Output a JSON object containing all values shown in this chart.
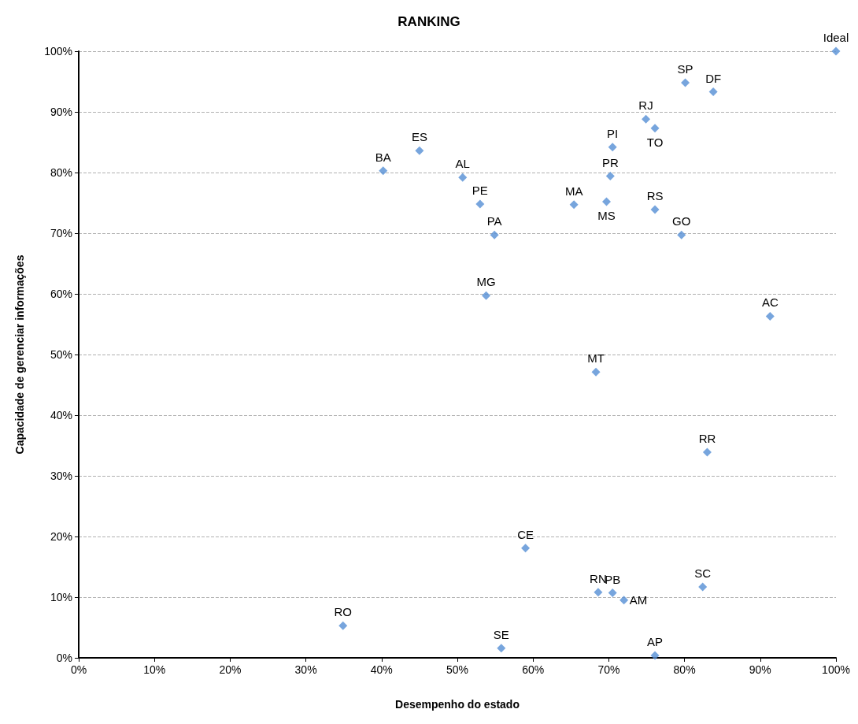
{
  "chart_data": {
    "type": "scatter",
    "title": "RANKING",
    "xlabel": "Desempenho do estado",
    "ylabel": "Capacidade de gerenciar informações",
    "x": [
      100,
      80.1,
      83.8,
      74.9,
      76.1,
      70.5,
      70.2,
      65.4,
      69.7,
      76.1,
      79.6,
      40.2,
      45.0,
      50.7,
      53.0,
      54.9,
      53.8,
      91.3,
      68.3,
      83.0,
      59.0,
      34.9,
      55.8,
      82.4,
      68.6,
      70.5,
      72.0,
      76.1
    ],
    "series": [
      {
        "color": "#558ed5",
        "values": [
          100,
          94.8,
          93.3,
          88.8,
          87.3,
          84.2,
          79.4,
          74.7,
          75.2,
          73.9,
          69.7,
          80.3,
          83.6,
          79.2,
          74.8,
          69.7,
          59.7,
          56.3,
          47.1,
          33.9,
          18.1,
          5.3,
          1.6,
          11.7,
          10.8,
          10.7,
          9.5,
          0.4
        ]
      }
    ],
    "annotations": [
      {
        "text": "Ideal",
        "x": 100,
        "y": 100
      },
      {
        "text": "SP",
        "x": 80.1,
        "y": 94.8
      },
      {
        "text": "DF",
        "x": 83.8,
        "y": 93.3
      },
      {
        "text": "RJ",
        "x": 74.9,
        "y": 88.8
      },
      {
        "text": "TO",
        "x": 76.1,
        "y": 87.3
      },
      {
        "text": "PI",
        "x": 70.5,
        "y": 84.2
      },
      {
        "text": "PR",
        "x": 70.2,
        "y": 79.4
      },
      {
        "text": "MA",
        "x": 65.4,
        "y": 74.7
      },
      {
        "text": "MS",
        "x": 69.7,
        "y": 75.2
      },
      {
        "text": "RS",
        "x": 76.1,
        "y": 73.9
      },
      {
        "text": "GO",
        "x": 79.6,
        "y": 69.7
      },
      {
        "text": "BA",
        "x": 40.2,
        "y": 80.3
      },
      {
        "text": "ES",
        "x": 45.0,
        "y": 83.6
      },
      {
        "text": "AL",
        "x": 50.7,
        "y": 79.2
      },
      {
        "text": "PE",
        "x": 53.0,
        "y": 74.8
      },
      {
        "text": "PA",
        "x": 54.9,
        "y": 69.7
      },
      {
        "text": "MG",
        "x": 53.8,
        "y": 59.7
      },
      {
        "text": "AC",
        "x": 91.3,
        "y": 56.3
      },
      {
        "text": "MT",
        "x": 68.3,
        "y": 47.1
      },
      {
        "text": "RR",
        "x": 83.0,
        "y": 33.9
      },
      {
        "text": "CE",
        "x": 59.0,
        "y": 18.1
      },
      {
        "text": "RO",
        "x": 34.9,
        "y": 5.3
      },
      {
        "text": "SE",
        "x": 55.8,
        "y": 1.6
      },
      {
        "text": "SC",
        "x": 82.4,
        "y": 11.7
      },
      {
        "text": "RN",
        "x": 68.6,
        "y": 10.8
      },
      {
        "text": "PB",
        "x": 70.5,
        "y": 10.7
      },
      {
        "text": "AM",
        "x": 72.0,
        "y": 9.5
      },
      {
        "text": "AP",
        "x": 76.1,
        "y": 0.4
      }
    ],
    "xlim": [
      0,
      100
    ],
    "ylim": [
      0,
      100
    ],
    "xticks": [
      {
        "value": 0,
        "label": "0%"
      },
      {
        "value": 10,
        "label": "10%"
      },
      {
        "value": 20,
        "label": "20%"
      },
      {
        "value": 30,
        "label": "30%"
      },
      {
        "value": 40,
        "label": "40%"
      },
      {
        "value": 50,
        "label": "50%"
      },
      {
        "value": 60,
        "label": "60%"
      },
      {
        "value": 70,
        "label": "70%"
      },
      {
        "value": 80,
        "label": "80%"
      },
      {
        "value": 90,
        "label": "90%"
      },
      {
        "value": 100,
        "label": "100%"
      }
    ],
    "yticks": [
      {
        "value": 0,
        "label": "0%"
      },
      {
        "value": 10,
        "label": "10%"
      },
      {
        "value": 20,
        "label": "20%"
      },
      {
        "value": 30,
        "label": "30%"
      },
      {
        "value": 40,
        "label": "40%"
      },
      {
        "value": 50,
        "label": "50%"
      },
      {
        "value": 60,
        "label": "60%"
      },
      {
        "value": 70,
        "label": "70%"
      },
      {
        "value": 80,
        "label": "80%"
      },
      {
        "value": 90,
        "label": "90%"
      },
      {
        "value": 100,
        "label": "100%"
      }
    ],
    "grid": "y",
    "marker": "diamond"
  }
}
